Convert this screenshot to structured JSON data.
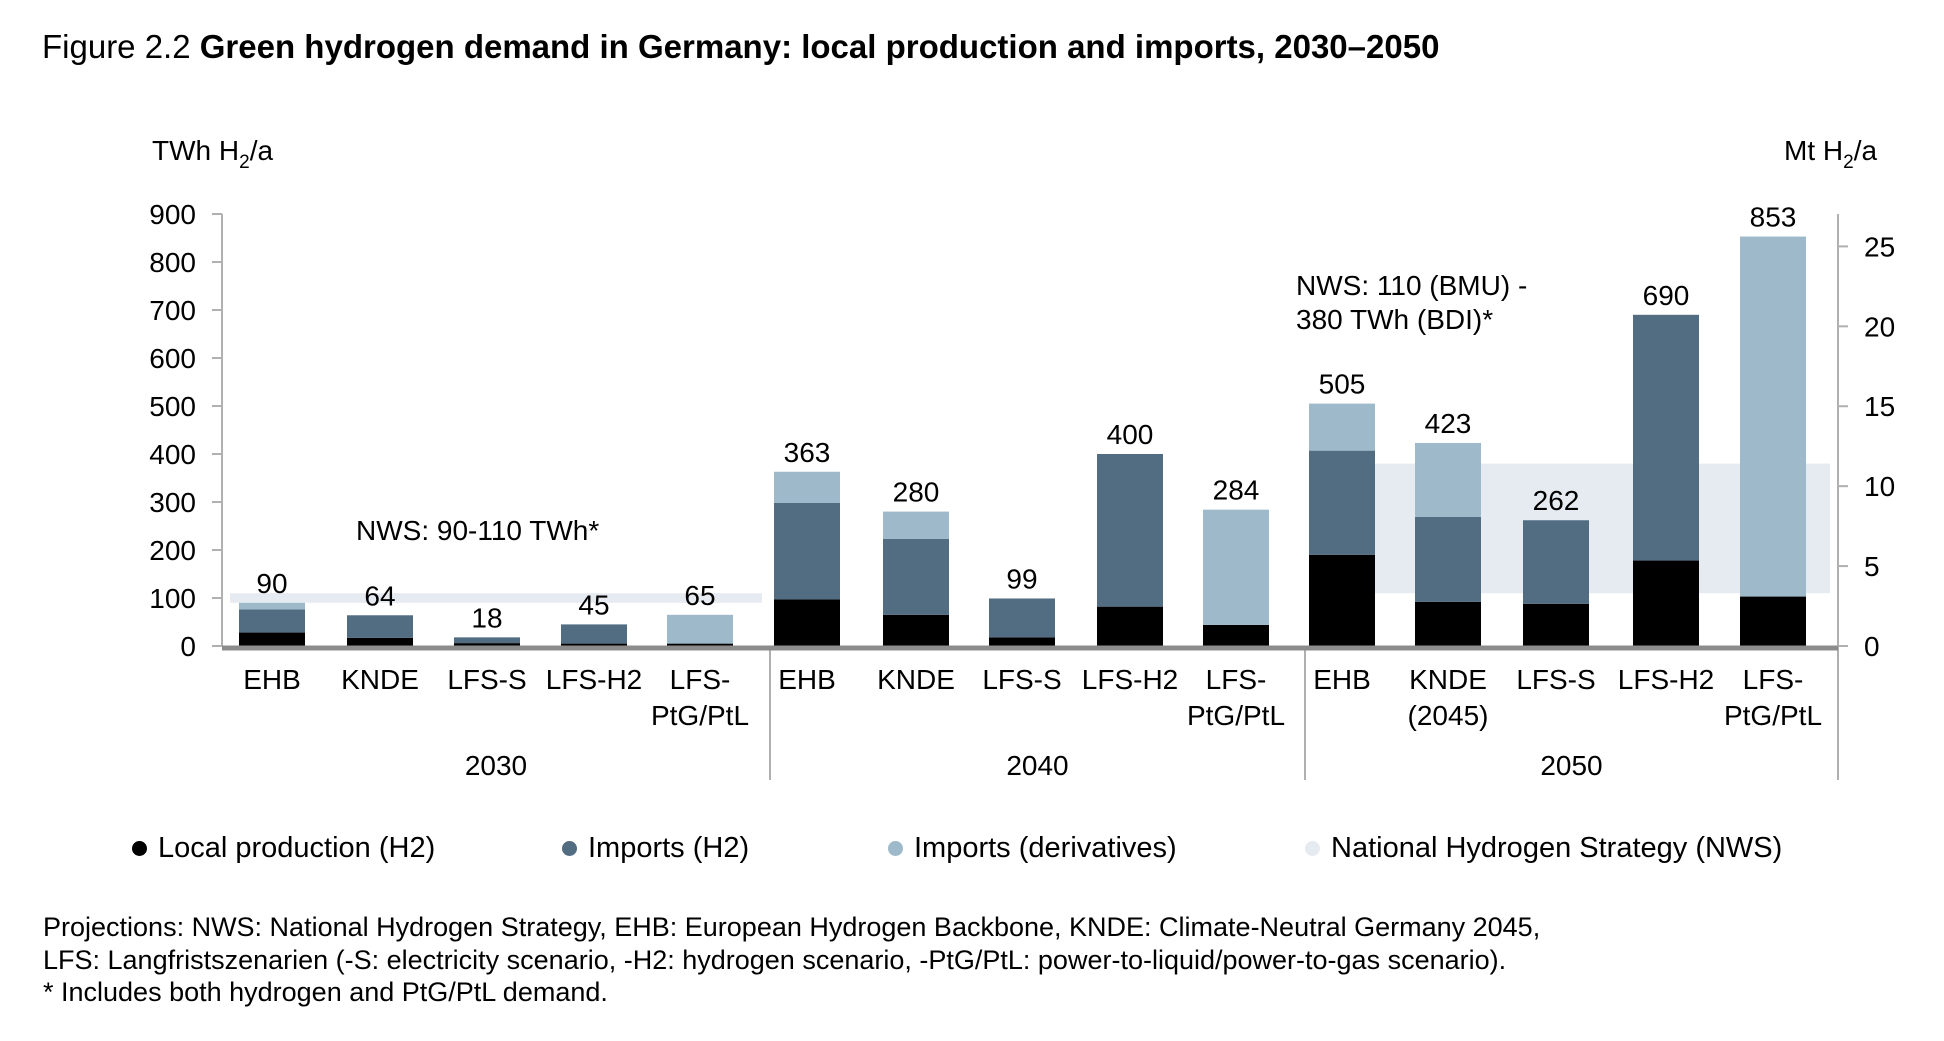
{
  "figure": {
    "number": "Figure 2.2",
    "title": "Green hydrogen demand in Germany: local production and imports, 2030–2050"
  },
  "chart_data": {
    "type": "bar",
    "stacked": true,
    "title": "Green hydrogen demand in Germany: local production and imports, 2030–2050",
    "ylabel": "TWh H2/a",
    "ylabel_parts": {
      "main": "TWh H",
      "sub": "2",
      "tail": "/a"
    },
    "y2label": "Mt H2/a",
    "y2label_parts": {
      "main": "Mt H",
      "sub": "2",
      "tail": "/a"
    },
    "ylim": [
      0,
      900
    ],
    "yticks": [
      0,
      100,
      200,
      300,
      400,
      500,
      600,
      700,
      800,
      900
    ],
    "y2lim": [
      0,
      27
    ],
    "y2ticks": [
      0,
      5,
      10,
      15,
      20,
      25
    ],
    "twh_per_mt": 33.3,
    "grid": false,
    "legend_position": "bottom",
    "groups": [
      {
        "label": "2030",
        "categories": [
          {
            "label": [
              "EHB"
            ],
            "total_label": "90"
          },
          {
            "label": [
              "KNDE"
            ],
            "total_label": "64"
          },
          {
            "label": [
              "LFS-S"
            ],
            "total_label": "18"
          },
          {
            "label": [
              "LFS-H2"
            ],
            "total_label": "45"
          },
          {
            "label": [
              "LFS-",
              "PtG/PtL"
            ],
            "total_label": "65"
          }
        ]
      },
      {
        "label": "2040",
        "categories": [
          {
            "label": [
              "EHB"
            ],
            "total_label": "363"
          },
          {
            "label": [
              "KNDE"
            ],
            "total_label": "280"
          },
          {
            "label": [
              "LFS-S"
            ],
            "total_label": "99"
          },
          {
            "label": [
              "LFS-H2"
            ],
            "total_label": "400"
          },
          {
            "label": [
              "LFS-",
              "PtG/PtL"
            ],
            "total_label": "284"
          }
        ]
      },
      {
        "label": "2050",
        "categories": [
          {
            "label": [
              "EHB"
            ],
            "total_label": "505"
          },
          {
            "label": [
              "KNDE",
              "(2045)"
            ],
            "total_label": "423"
          },
          {
            "label": [
              "LFS-S"
            ],
            "total_label": "262"
          },
          {
            "label": [
              "LFS-H2"
            ],
            "total_label": "690"
          },
          {
            "label": [
              "LFS-",
              "PtG/PtL"
            ],
            "total_label": "853"
          }
        ]
      }
    ],
    "series": [
      {
        "name": "Local production (H2)",
        "color": "#000000",
        "values": [
          28,
          17,
          6,
          5,
          5,
          97,
          65,
          18,
          82,
          44,
          190,
          92,
          88,
          178,
          103
        ]
      },
      {
        "name": "Imports (H2)",
        "color": "#526c82",
        "values": [
          48,
          47,
          12,
          40,
          0,
          201,
          158,
          81,
          318,
          0,
          217,
          177,
          174,
          512,
          0
        ]
      },
      {
        "name": "Imports (derivatives)",
        "color": "#9db9ca",
        "values": [
          14,
          0,
          0,
          0,
          60,
          65,
          57,
          0,
          0,
          240,
          98,
          154,
          0,
          0,
          750
        ]
      }
    ],
    "totals": [
      90,
      64,
      18,
      45,
      65,
      363,
      280,
      99,
      400,
      284,
      505,
      423,
      262,
      690,
      853
    ],
    "nws_bands": [
      {
        "name": "National Hydrogen Strategy (NWS)",
        "group": "2030",
        "range": [
          90,
          110
        ],
        "annotation": [
          "NWS: 90-110 TWh*"
        ]
      },
      {
        "name": "National Hydrogen Strategy (NWS)",
        "group": "2050",
        "range": [
          110,
          380
        ],
        "annotation": [
          "NWS: 110 (BMU) -",
          "380 TWh (BDI)*"
        ]
      }
    ],
    "nws_color": "#e6ebf2"
  },
  "legend": [
    {
      "label": "Local production (H2)",
      "color": "#000000"
    },
    {
      "label": "Imports (H2)",
      "color": "#526c82"
    },
    {
      "label": "Imports (derivatives)",
      "color": "#9db9ca"
    },
    {
      "label": "National Hydrogen Strategy (NWS)",
      "color": "#e6ebf2"
    }
  ],
  "notes": [
    "Projections: NWS: National Hydrogen Strategy, EHB: European Hydrogen Backbone, KNDE: Climate-Neutral Germany 2045,",
    "LFS: Langfristszenarien (-S: electricity scenario, -H2: hydrogen scenario, -PtG/PtL: power-to-liquid/power-to-gas scenario).",
    "* Includes both hydrogen and PtG/PtL demand."
  ]
}
